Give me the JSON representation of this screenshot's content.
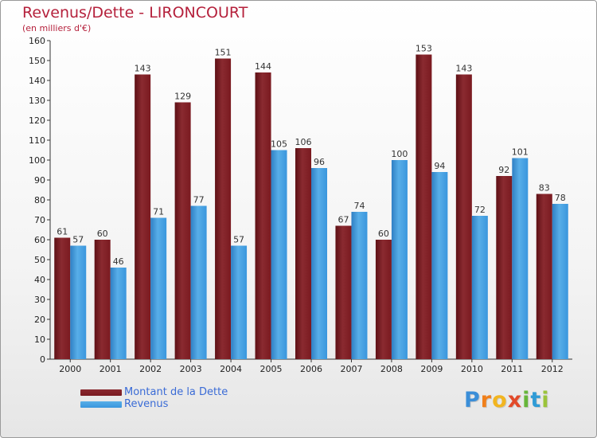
{
  "chart_data": {
    "type": "bar",
    "title": "Revenus/Dette - LIRONCOURT",
    "subtitle": "(en milliers d'€)",
    "categories": [
      "2000",
      "2001",
      "2002",
      "2003",
      "2004",
      "2005",
      "2006",
      "2007",
      "2008",
      "2009",
      "2010",
      "2011",
      "2012"
    ],
    "series": [
      {
        "name": "Montant de la Dette",
        "color": "#7a1a20",
        "values": [
          61,
          60,
          143,
          129,
          151,
          144,
          106,
          67,
          60,
          153,
          143,
          92,
          83
        ]
      },
      {
        "name": "Revenus",
        "color": "#3a96dd",
        "values": [
          57,
          46,
          71,
          77,
          57,
          105,
          96,
          74,
          100,
          94,
          72,
          101,
          78
        ]
      }
    ],
    "ylim": [
      0,
      160
    ],
    "ytick_step": 10,
    "grid": false,
    "legend_position": "bottom-left"
  },
  "logo": {
    "letters": [
      "P",
      "r",
      "o",
      "x",
      "i",
      "t",
      "i"
    ],
    "colors": [
      "#3b8ed8",
      "#f07f1a",
      "#f2b520",
      "#e24a2a",
      "#67b63a",
      "#2f9bd6",
      "#9bc43a"
    ]
  }
}
